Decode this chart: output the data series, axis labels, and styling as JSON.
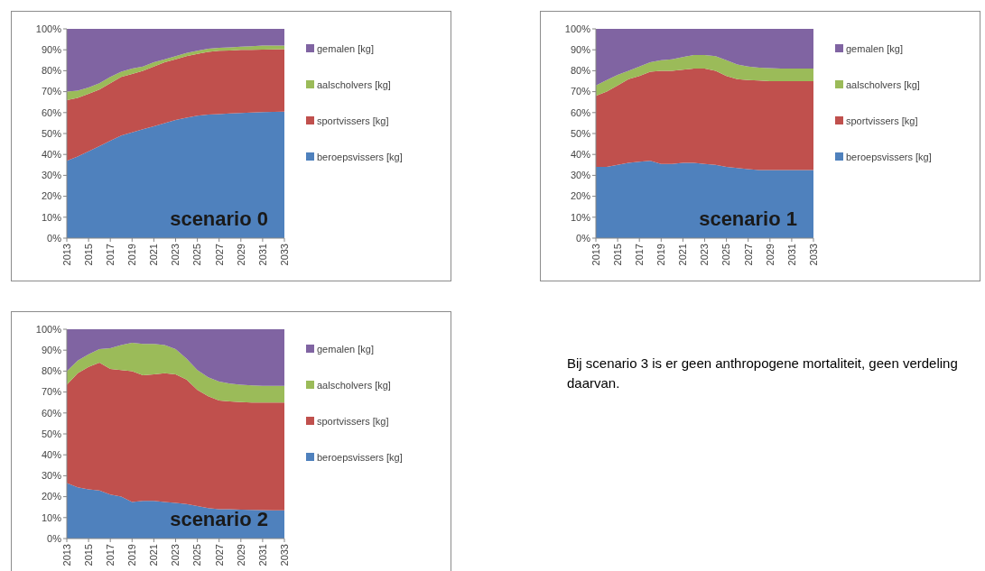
{
  "chart_data": [
    {
      "type": "area",
      "stacked": true,
      "x": [
        2013,
        2014,
        2015,
        2016,
        2017,
        2018,
        2019,
        2020,
        2021,
        2022,
        2023,
        2024,
        2025,
        2026,
        2027,
        2028,
        2029,
        2030,
        2031,
        2032,
        2033
      ],
      "xlim": [
        2013,
        2033
      ],
      "xticks": [
        2013,
        2015,
        2017,
        2019,
        2021,
        2023,
        2025,
        2027,
        2029,
        2031,
        2033
      ],
      "ylim": [
        0,
        100
      ],
      "yticks": [
        {
          "value": 0,
          "label": "0%"
        },
        {
          "value": 10,
          "label": "10%"
        },
        {
          "value": 20,
          "label": "20%"
        },
        {
          "value": 30,
          "label": "30%"
        },
        {
          "value": 40,
          "label": "40%"
        },
        {
          "value": 50,
          "label": "50%"
        },
        {
          "value": 60,
          "label": "60%"
        },
        {
          "value": 70,
          "label": "70%"
        },
        {
          "value": 80,
          "label": "80%"
        },
        {
          "value": 90,
          "label": "90%"
        },
        {
          "value": 100,
          "label": "100%"
        }
      ],
      "legend": "right",
      "annotations": [
        "scenario 0"
      ],
      "series": [
        {
          "name": "beroepsvissers [kg]",
          "color": "#4f81bd",
          "values": [
            37,
            39,
            41.5,
            44,
            46.5,
            49,
            50.5,
            52,
            53.5,
            55,
            56.5,
            57.5,
            58.5,
            59,
            59.3,
            59.6,
            59.8,
            60,
            60.2,
            60.3,
            60.5
          ]
        },
        {
          "name": "sportvissers [kg]",
          "color": "#c0504d",
          "values": [
            29,
            28,
            27.5,
            27,
            27.5,
            28,
            28,
            28,
            28.5,
            29,
            29,
            29.5,
            29.5,
            30,
            30.2,
            30.1,
            30.2,
            30,
            29.9,
            29.9,
            29.8
          ]
        },
        {
          "name": "aalscholvers [kg]",
          "color": "#9bbb59",
          "values": [
            4,
            3.5,
            3,
            3,
            3,
            2.5,
            2.5,
            2,
            2,
            1.5,
            1.5,
            1.5,
            1.5,
            1.5,
            1.5,
            1.5,
            1.5,
            1.7,
            1.9,
            1.8,
            1.7
          ]
        },
        {
          "name": "gemalen [kg]",
          "color": "#8064a2",
          "values": [
            30,
            29.5,
            28,
            26,
            23,
            20.5,
            19,
            18,
            16,
            14.5,
            13,
            11.5,
            10.5,
            9.5,
            9,
            8.8,
            8.5,
            8.3,
            8,
            8,
            8
          ]
        }
      ]
    },
    {
      "type": "area",
      "stacked": true,
      "x": [
        2013,
        2014,
        2015,
        2016,
        2017,
        2018,
        2019,
        2020,
        2021,
        2022,
        2023,
        2024,
        2025,
        2026,
        2027,
        2028,
        2029,
        2030,
        2031,
        2032,
        2033
      ],
      "xlim": [
        2013,
        2033
      ],
      "xticks": [
        2013,
        2015,
        2017,
        2019,
        2021,
        2023,
        2025,
        2027,
        2029,
        2031,
        2033
      ],
      "ylim": [
        0,
        100
      ],
      "yticks": [
        {
          "value": 0,
          "label": "0%"
        },
        {
          "value": 10,
          "label": "10%"
        },
        {
          "value": 20,
          "label": "20%"
        },
        {
          "value": 30,
          "label": "30%"
        },
        {
          "value": 40,
          "label": "40%"
        },
        {
          "value": 50,
          "label": "50%"
        },
        {
          "value": 60,
          "label": "60%"
        },
        {
          "value": 70,
          "label": "70%"
        },
        {
          "value": 80,
          "label": "80%"
        },
        {
          "value": 90,
          "label": "90%"
        },
        {
          "value": 100,
          "label": "100%"
        }
      ],
      "legend": "right",
      "annotations": [
        "scenario 1"
      ],
      "series": [
        {
          "name": "beroepsvissers [kg]",
          "color": "#4f81bd",
          "values": [
            34,
            34,
            35,
            36,
            36.5,
            37,
            35.5,
            35.5,
            36,
            36,
            35.5,
            35,
            34,
            33.5,
            33,
            32.5,
            32.5,
            32.5,
            32.5,
            32.5,
            32.5
          ]
        },
        {
          "name": "sportvissers [kg]",
          "color": "#c0504d",
          "values": [
            34,
            36,
            38,
            40,
            41,
            42.5,
            44.5,
            44.5,
            44.5,
            45,
            45.5,
            45,
            43.5,
            42.5,
            42.5,
            42.8,
            42.5,
            42.5,
            42.5,
            42.5,
            42.5
          ]
        },
        {
          "name": "aalscholvers [kg]",
          "color": "#9bbb59",
          "values": [
            5,
            5.5,
            5,
            4,
            4.5,
            4.5,
            5,
            5.5,
            6,
            6.5,
            6.5,
            7,
            7.5,
            7,
            6.5,
            6.2,
            6.2,
            6,
            6,
            6,
            6
          ]
        },
        {
          "name": "gemalen [kg]",
          "color": "#8064a2",
          "values": [
            27,
            24.5,
            22,
            20,
            18,
            16,
            15,
            14.5,
            13.5,
            12.5,
            12.5,
            13,
            15,
            17,
            18,
            18.5,
            18.8,
            19,
            19,
            19,
            19
          ]
        }
      ]
    },
    {
      "type": "area",
      "stacked": true,
      "x": [
        2013,
        2014,
        2015,
        2016,
        2017,
        2018,
        2019,
        2020,
        2021,
        2022,
        2023,
        2024,
        2025,
        2026,
        2027,
        2028,
        2029,
        2030,
        2031,
        2032,
        2033
      ],
      "xlim": [
        2013,
        2033
      ],
      "xticks": [
        2013,
        2015,
        2017,
        2019,
        2021,
        2023,
        2025,
        2027,
        2029,
        2031,
        2033
      ],
      "ylim": [
        0,
        100
      ],
      "yticks": [
        {
          "value": 0,
          "label": "0%"
        },
        {
          "value": 10,
          "label": "10%"
        },
        {
          "value": 20,
          "label": "20%"
        },
        {
          "value": 30,
          "label": "30%"
        },
        {
          "value": 40,
          "label": "40%"
        },
        {
          "value": 50,
          "label": "50%"
        },
        {
          "value": 60,
          "label": "60%"
        },
        {
          "value": 70,
          "label": "70%"
        },
        {
          "value": 80,
          "label": "80%"
        },
        {
          "value": 90,
          "label": "90%"
        },
        {
          "value": 100,
          "label": "100%"
        }
      ],
      "legend": "right",
      "annotations": [
        "scenario 2"
      ],
      "series": [
        {
          "name": "beroepsvissers [kg]",
          "color": "#4f81bd",
          "values": [
            26.5,
            24.5,
            23.5,
            23,
            21,
            20,
            17.5,
            18,
            18,
            17.5,
            17,
            16.5,
            15.5,
            14.5,
            14,
            14,
            13.8,
            13.7,
            13.6,
            13.5,
            13.5
          ]
        },
        {
          "name": "sportvissers [kg]",
          "color": "#c0504d",
          "values": [
            47,
            54.5,
            58.5,
            61,
            60,
            60.5,
            62.5,
            60,
            60.5,
            61.5,
            61.5,
            59.5,
            55.5,
            53.5,
            52,
            51.5,
            51.4,
            51.3,
            51.4,
            51.5,
            51.5
          ]
        },
        {
          "name": "aalscholvers [kg]",
          "color": "#9bbb59",
          "values": [
            6.5,
            6,
            6,
            6.5,
            10,
            12,
            13.5,
            15,
            14.5,
            13.5,
            12,
            10,
            9.5,
            9,
            9,
            8.5,
            8.3,
            8.2,
            8,
            8,
            8
          ]
        },
        {
          "name": "gemalen [kg]",
          "color": "#8064a2",
          "values": [
            20,
            15,
            12,
            9.5,
            9,
            7.5,
            6.5,
            7,
            7,
            7.5,
            9.5,
            14,
            19.5,
            23,
            25,
            26,
            26.5,
            26.8,
            27,
            27,
            27
          ]
        }
      ]
    },
    {
      "type": "other",
      "annotations": [
        "Bij scenario 3 is er geen anthropogene mortaliteit, geen verdeling daarvan."
      ]
    }
  ]
}
